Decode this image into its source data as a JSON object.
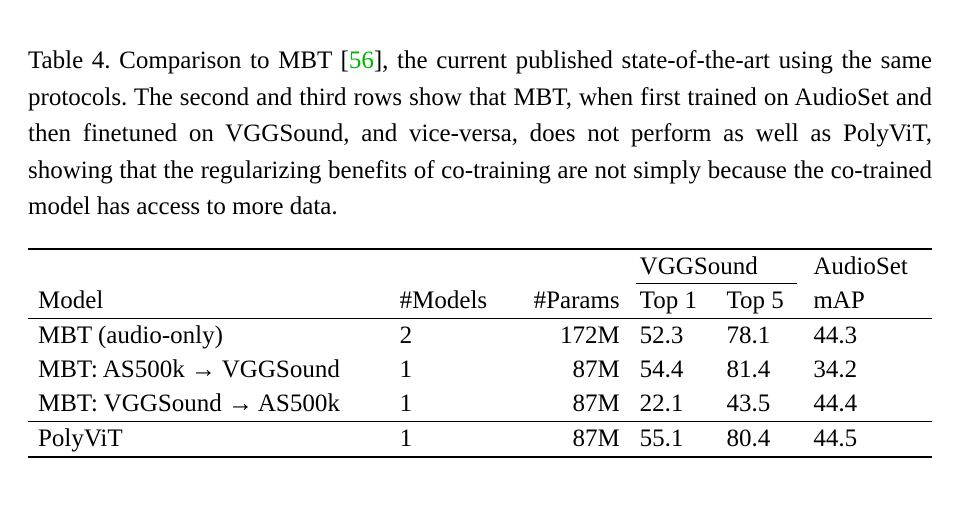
{
  "caption": {
    "prefix": "Table 4. Comparison to MBT [",
    "cite_num": "56",
    "suffix": "], the current published state-of-the-art using the same protocols. The second and third rows show that MBT, when first trained on AudioSet and then finetuned on VGGSound, and vice-versa, does not perform as well as PolyViT, showing that the regularizing benefits of co-training are not simply because the co-trained model has access to more data.",
    "cite_color": "#00b500",
    "fontsize": 25,
    "line_height": 1.46
  },
  "table": {
    "fontsize": 25,
    "rule_color": "#000000",
    "columns": {
      "model": {
        "label": "Model",
        "align": "left"
      },
      "nmodels": {
        "label": "#Models",
        "align": "center"
      },
      "nparams": {
        "label": "#Params",
        "align": "center"
      },
      "vgg_top1": {
        "label": "Top 1",
        "align": "center"
      },
      "vgg_top5": {
        "label": "Top 5",
        "align": "center"
      },
      "as_map": {
        "label": "mAP",
        "align": "center"
      }
    },
    "groups": {
      "vggsound": {
        "label": "VGGSound",
        "span": [
          "vgg_top1",
          "vgg_top5"
        ]
      },
      "audioset": {
        "label": "AudioSet",
        "span": [
          "as_map"
        ]
      }
    },
    "rows": [
      {
        "model": "MBT (audio-only)",
        "nmodels": "2",
        "nparams": "172M",
        "vgg_top1": "52.3",
        "vgg_top5": "78.1",
        "as_map": "44.3",
        "bold": false
      },
      {
        "model": "MBT: AS500k → VGGSound",
        "nmodels": "1",
        "nparams": "87M",
        "vgg_top1": "54.4",
        "vgg_top5": "81.4",
        "as_map": "34.2",
        "bold": false
      },
      {
        "model": "MBT: VGGSound → AS500k",
        "nmodels": "1",
        "nparams": "87M",
        "vgg_top1": "22.1",
        "vgg_top5": "43.5",
        "as_map": "44.4",
        "bold": false
      },
      {
        "model": "PolyViT",
        "nmodels": "1",
        "nparams": "87M",
        "vgg_top1": "55.1",
        "vgg_top5": "80.4",
        "as_map": "44.5",
        "bold": true
      }
    ]
  },
  "colors": {
    "text": "#000000",
    "background": "#ffffff"
  }
}
